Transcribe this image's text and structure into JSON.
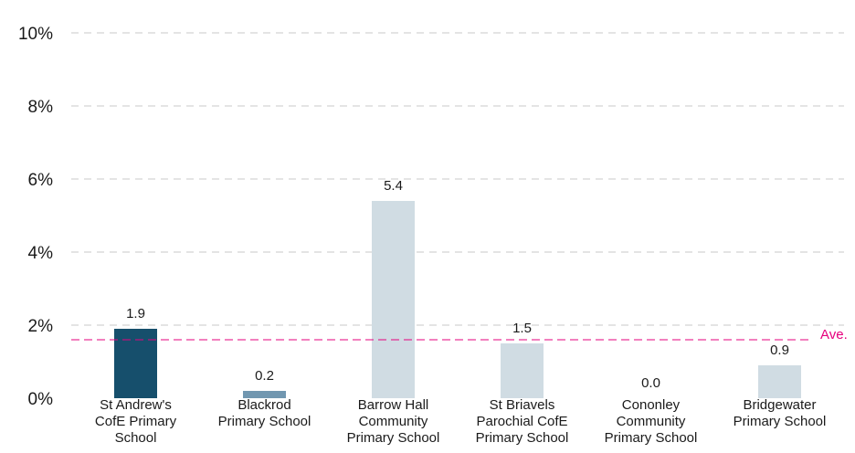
{
  "chart_data": {
    "type": "bar",
    "categories": [
      [
        "St Andrew's",
        "CofE Primary",
        "School"
      ],
      [
        "Blackrod",
        "Primary School"
      ],
      [
        "Barrow Hall",
        "Community",
        "Primary School"
      ],
      [
        "St Briavels",
        "Parochial CofE",
        "Primary School"
      ],
      [
        "Cononley",
        "Community",
        "Primary School"
      ],
      [
        "Bridgewater",
        "Primary School"
      ]
    ],
    "values": [
      1.9,
      0.2,
      5.4,
      1.5,
      0.0,
      0.9
    ],
    "value_labels": [
      "1.9",
      "0.2",
      "5.4",
      "1.5",
      "0.0",
      "0.9"
    ],
    "bar_colors": [
      "#164f6c",
      "#7197b0",
      "#d0dce3",
      "#d0dce3",
      "#d0dce3",
      "#d0dce3"
    ],
    "ylim": [
      0,
      10
    ],
    "yticks": [
      0,
      2,
      4,
      6,
      8,
      10
    ],
    "ytick_labels": [
      "0%",
      "2%",
      "4%",
      "6%",
      "8%",
      "10%"
    ],
    "grid": "dashed horizontal",
    "average": {
      "value": 1.6,
      "label": "Ave.",
      "color": "#e6007e"
    },
    "title": "",
    "xlabel": "",
    "ylabel": ""
  }
}
